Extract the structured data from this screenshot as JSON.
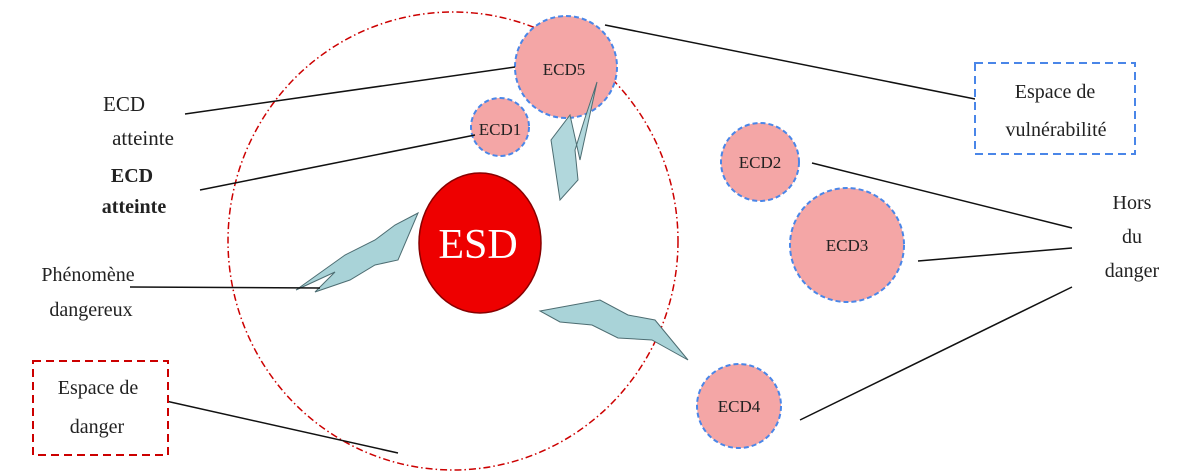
{
  "diagram": {
    "nodes": {
      "esd": "ESD",
      "ecd1": "ECD1",
      "ecd2": "ECD2",
      "ecd3": "ECD3",
      "ecd4": "ECD4",
      "ecd5": "ECD5"
    },
    "labels": {
      "ecd_atteinte_1": [
        "ECD",
        "atteinte"
      ],
      "ecd_atteinte_2": [
        "ECD",
        "atteinte"
      ],
      "phenomene": [
        "Phénomène",
        "dangereux"
      ],
      "espace_danger": [
        "Espace de",
        "danger"
      ],
      "espace_vulnerabilite": [
        "Espace de",
        "vulnérabilité"
      ],
      "hors_danger": [
        "Hors",
        "du",
        "danger"
      ]
    },
    "colors": {
      "esd_fill": "#ee0000",
      "ecd_fill": "#f4a6a6",
      "ecd_border": "#4a86e8",
      "danger_circle": "#cc0000",
      "lightning": "#a9d3d8",
      "vulnerability_box": "#4a86e8",
      "danger_box": "#cc0000"
    }
  }
}
